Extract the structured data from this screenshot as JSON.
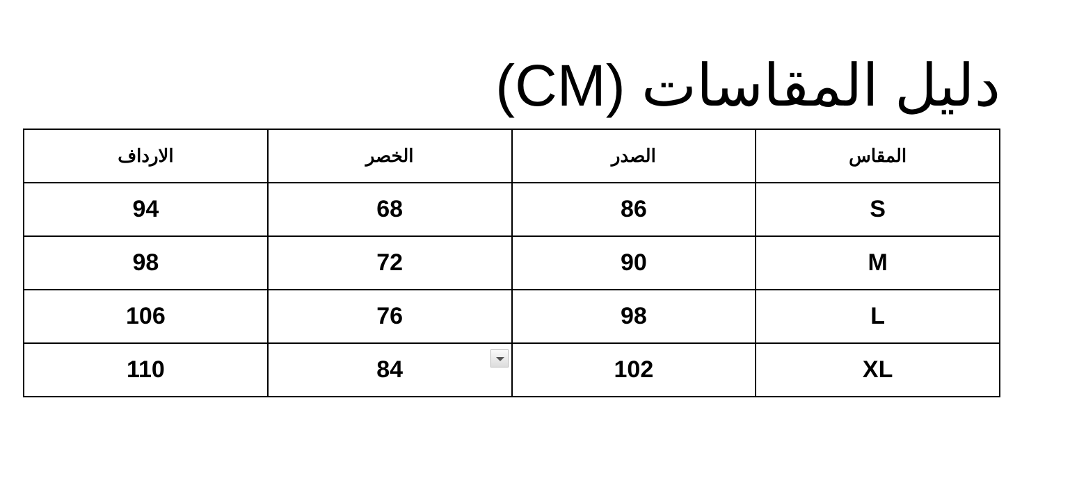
{
  "title": "دليل المقاسات (CM)",
  "table": {
    "headers": [
      "المقاس",
      "الصدر",
      "الخصر",
      "الارداف"
    ],
    "rows": [
      [
        "S",
        "86",
        "68",
        "94"
      ],
      [
        "M",
        "90",
        "72",
        "98"
      ],
      [
        "L",
        "98",
        "76",
        "106"
      ],
      [
        "XL",
        "102",
        "84",
        "110"
      ]
    ]
  },
  "icons": {
    "dropdown": "chevron-down-icon"
  }
}
